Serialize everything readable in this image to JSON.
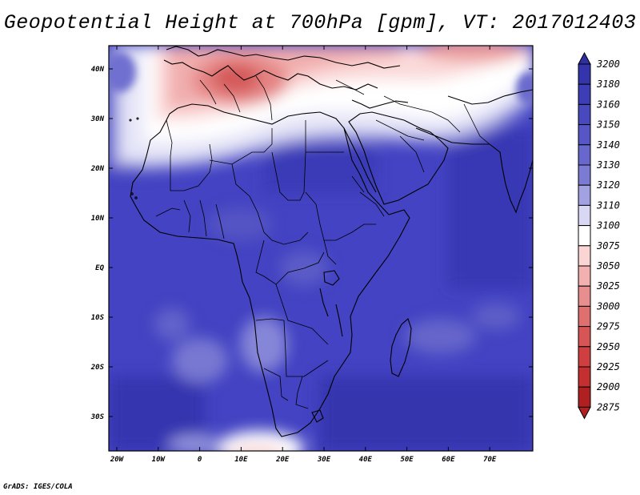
{
  "title": "Geopotential Height at 700hPa [gpm], VT: 2017012403",
  "credit": "GrADS: IGES/COLA",
  "map": {
    "lat_ticks": [
      "40N",
      "30N",
      "20N",
      "10N",
      "EQ",
      "10S",
      "20S",
      "30S"
    ],
    "lon_ticks": [
      "20W",
      "10W",
      "0",
      "10E",
      "20E",
      "30E",
      "40E",
      "50E",
      "60E",
      "70E"
    ],
    "lon_range": [
      "20W",
      "80E"
    ],
    "lat_range": [
      "37S",
      "45N"
    ]
  },
  "colorbar": {
    "levels": [
      "3200",
      "3180",
      "3160",
      "3150",
      "3140",
      "3130",
      "3120",
      "3110",
      "3100",
      "3075",
      "3050",
      "3025",
      "3000",
      "2975",
      "2950",
      "2925",
      "2900",
      "2875"
    ],
    "colors": [
      "#2f2f9f",
      "#3434ac",
      "#3d3db6",
      "#4848bf",
      "#5656c6",
      "#6767cd",
      "#7b7bd4",
      "#a2a2e2",
      "#d8d8f4",
      "#ffffff",
      "#fbd4d4",
      "#f3b0b0",
      "#e88e8e",
      "#e06f6f",
      "#d85555",
      "#cf3f3f",
      "#c43030",
      "#b02020"
    ]
  }
}
